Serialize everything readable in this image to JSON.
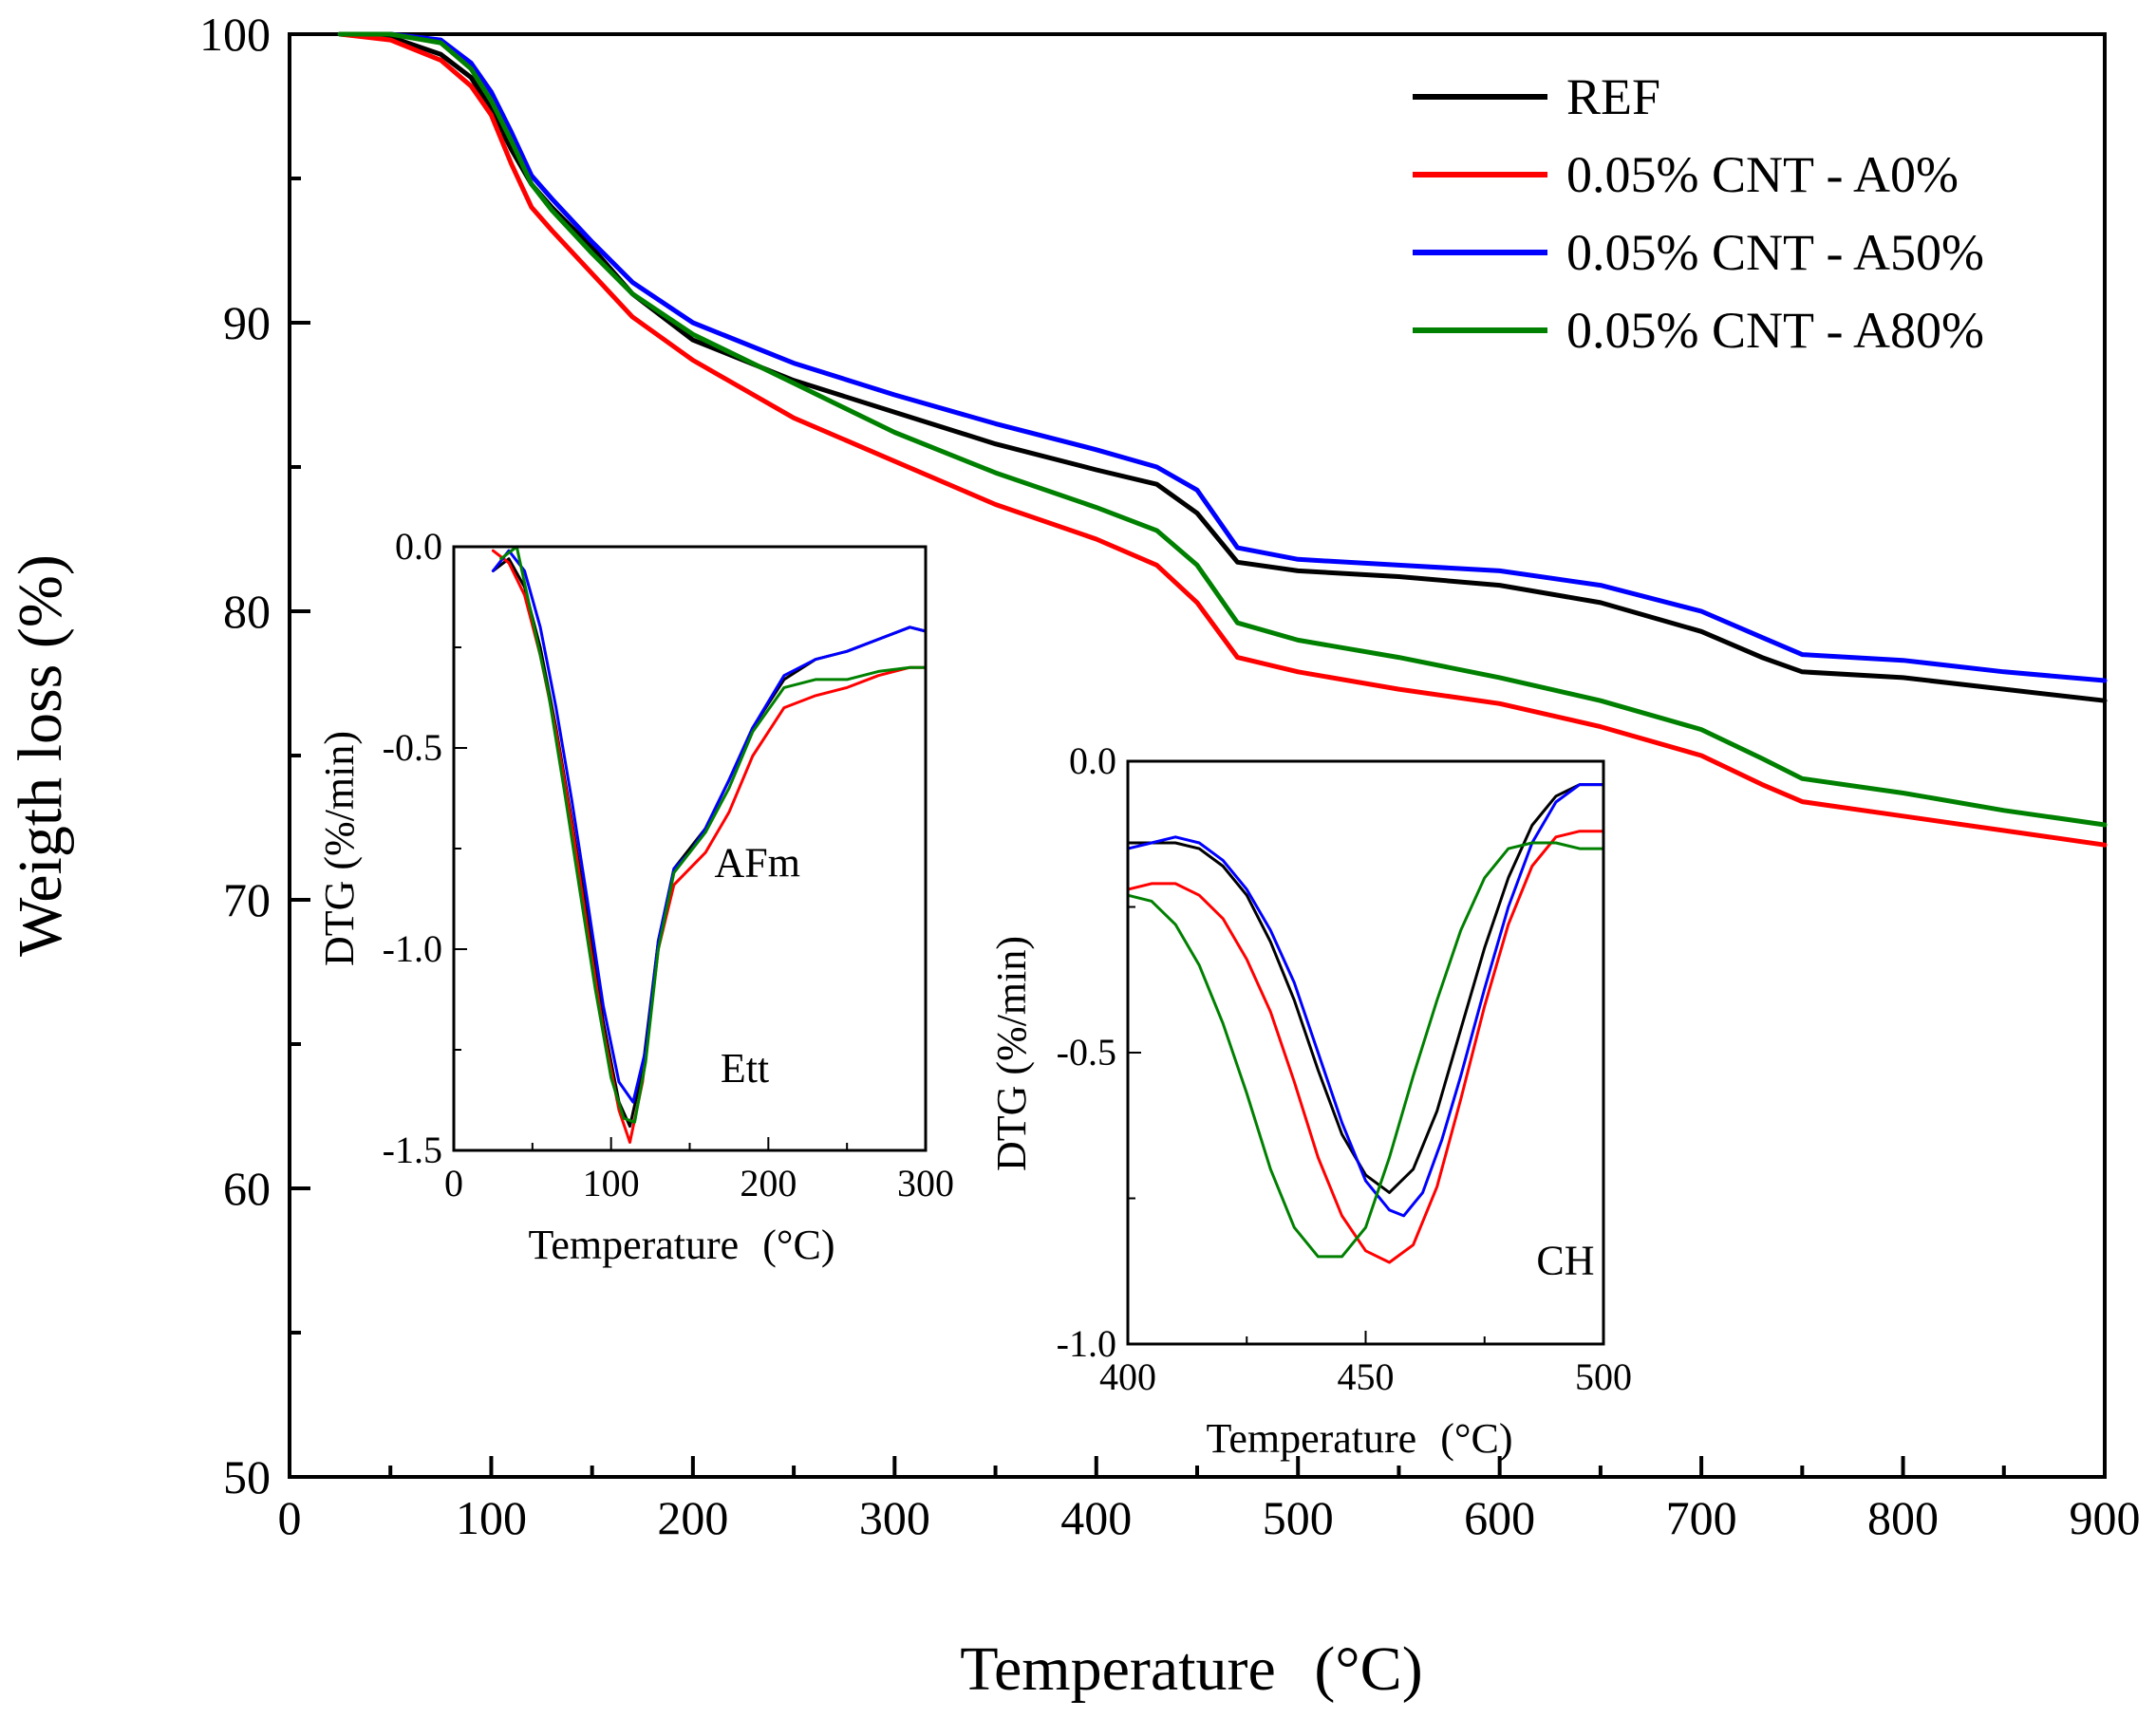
{
  "chart_data": [
    {
      "type": "line",
      "id": "main",
      "title": "",
      "xlabel": "Temperature (°C)",
      "xlabel_main": "Temperature",
      "xlabel_unit": "(°C)",
      "ylabel": "Weigth loss (%)",
      "xlim": [
        0,
        900
      ],
      "ylim": [
        50,
        100
      ],
      "xticks": [
        0,
        100,
        200,
        300,
        400,
        500,
        600,
        700,
        800,
        900
      ],
      "xtick_labels": [
        "0",
        "100",
        "200",
        "300",
        "400",
        "500",
        "600",
        "700",
        "800",
        "900"
      ],
      "yticks": [
        50,
        60,
        70,
        80,
        90,
        100
      ],
      "ytick_labels": [
        "50",
        "60",
        "70",
        "80",
        "90",
        "100"
      ],
      "legend_position": "top-right",
      "series": [
        {
          "name": "REF",
          "color": "#000000",
          "x": [
            25,
            50,
            75,
            90,
            100,
            110,
            120,
            130,
            150,
            170,
            200,
            250,
            300,
            350,
            400,
            430,
            450,
            470,
            500,
            550,
            600,
            650,
            700,
            730,
            750,
            800,
            850,
            900
          ],
          "y": [
            100,
            99.9,
            99.3,
            98.5,
            97.4,
            96,
            94.8,
            94.0,
            92.6,
            91.0,
            89.4,
            88.0,
            86.9,
            85.8,
            84.9,
            84.4,
            83.4,
            81.7,
            81.4,
            81.2,
            80.9,
            80.3,
            79.3,
            78.4,
            77.9,
            77.7,
            77.3,
            76.9
          ]
        },
        {
          "name": "0.05% CNT - A0%",
          "color": "#ff0000",
          "x": [
            25,
            50,
            75,
            90,
            100,
            110,
            120,
            130,
            150,
            170,
            200,
            250,
            300,
            350,
            400,
            430,
            450,
            470,
            500,
            550,
            600,
            650,
            700,
            730,
            750,
            800,
            850,
            900
          ],
          "y": [
            100,
            99.8,
            99.1,
            98.2,
            97.2,
            95.5,
            94.0,
            93.2,
            91.7,
            90.2,
            88.7,
            86.7,
            85.2,
            83.7,
            82.5,
            81.6,
            80.3,
            78.4,
            77.9,
            77.3,
            76.8,
            76.0,
            75.0,
            74.0,
            73.4,
            72.9,
            72.4,
            71.9
          ]
        },
        {
          "name": "0.05% CNT - A50%",
          "color": "#0000ff",
          "x": [
            25,
            50,
            75,
            90,
            100,
            110,
            120,
            130,
            150,
            170,
            200,
            250,
            300,
            350,
            400,
            430,
            450,
            470,
            500,
            550,
            600,
            650,
            700,
            730,
            750,
            800,
            850,
            900
          ],
          "y": [
            100,
            100,
            99.8,
            99.0,
            98.0,
            96.6,
            95.1,
            94.3,
            92.8,
            91.4,
            90.0,
            88.6,
            87.5,
            86.5,
            85.6,
            85.0,
            84.2,
            82.2,
            81.8,
            81.6,
            81.4,
            80.9,
            80.0,
            79.1,
            78.5,
            78.3,
            77.9,
            77.6
          ]
        },
        {
          "name": "0.05% CNT - A80%",
          "color": "#008000",
          "x": [
            25,
            50,
            75,
            90,
            100,
            110,
            120,
            130,
            150,
            170,
            200,
            250,
            300,
            350,
            400,
            430,
            450,
            470,
            500,
            550,
            600,
            650,
            700,
            730,
            750,
            800,
            850,
            900
          ],
          "y": [
            100,
            100,
            99.7,
            98.8,
            97.7,
            96.3,
            94.8,
            93.9,
            92.4,
            91.0,
            89.6,
            87.9,
            86.2,
            84.8,
            83.6,
            82.8,
            81.6,
            79.6,
            79.0,
            78.4,
            77.7,
            76.9,
            75.9,
            74.9,
            74.2,
            73.7,
            73.1,
            72.6
          ]
        }
      ]
    },
    {
      "type": "line",
      "id": "inset-left",
      "xlabel": "Temperature (°C)",
      "xlabel_main": "Temperature",
      "xlabel_unit": "(°C)",
      "ylabel": "DTG (%/min)",
      "xlim": [
        0,
        300
      ],
      "ylim": [
        -1.5,
        0.0
      ],
      "xticks": [
        0,
        100,
        200,
        300
      ],
      "xtick_labels": [
        "0",
        "100",
        "200",
        "300"
      ],
      "yticks": [
        -1.5,
        -1.0,
        -0.5,
        0.0
      ],
      "ytick_labels": [
        "-1.5",
        "-1.0",
        "-0.5",
        "0.0"
      ],
      "annotations": [
        {
          "text": "AFm",
          "x": 193,
          "y": -0.82
        },
        {
          "text": "Ett",
          "x": 185,
          "y": -1.33
        }
      ],
      "series": [
        {
          "name": "REF",
          "color": "#000000",
          "x": [
            25,
            35,
            45,
            55,
            65,
            75,
            85,
            95,
            105,
            112,
            120,
            130,
            140,
            150,
            160,
            175,
            190,
            210,
            230,
            250,
            270,
            290,
            300
          ],
          "y": [
            -0.06,
            -0.03,
            -0.1,
            -0.25,
            -0.45,
            -0.68,
            -0.92,
            -1.18,
            -1.38,
            -1.44,
            -1.3,
            -0.98,
            -0.8,
            -0.75,
            -0.7,
            -0.58,
            -0.45,
            -0.33,
            -0.28,
            -0.26,
            -0.23,
            -0.2,
            -0.21
          ]
        },
        {
          "name": "0.05% CNT - A0%",
          "color": "#ff0000",
          "x": [
            25,
            35,
            45,
            55,
            65,
            75,
            85,
            95,
            105,
            112,
            120,
            130,
            140,
            150,
            160,
            175,
            190,
            210,
            230,
            250,
            270,
            290,
            300
          ],
          "y": [
            -0.01,
            -0.04,
            -0.12,
            -0.27,
            -0.46,
            -0.69,
            -0.95,
            -1.2,
            -1.4,
            -1.48,
            -1.33,
            -1.0,
            -0.84,
            -0.8,
            -0.76,
            -0.66,
            -0.52,
            -0.4,
            -0.37,
            -0.35,
            -0.32,
            -0.3,
            -0.3
          ]
        },
        {
          "name": "0.05% CNT - A50%",
          "color": "#0000ff",
          "x": [
            25,
            35,
            45,
            55,
            65,
            75,
            85,
            95,
            105,
            114,
            122,
            130,
            140,
            150,
            160,
            175,
            190,
            210,
            230,
            250,
            270,
            290,
            300
          ],
          "y": [
            -0.06,
            -0.01,
            -0.06,
            -0.2,
            -0.4,
            -0.63,
            -0.88,
            -1.14,
            -1.33,
            -1.38,
            -1.25,
            -0.98,
            -0.8,
            -0.76,
            -0.7,
            -0.58,
            -0.45,
            -0.32,
            -0.28,
            -0.26,
            -0.23,
            -0.2,
            -0.21
          ]
        },
        {
          "name": "0.05% CNT - A80%",
          "color": "#008000",
          "x": [
            30,
            40,
            50,
            60,
            70,
            80,
            90,
            100,
            108,
            115,
            122,
            130,
            140,
            150,
            160,
            175,
            190,
            210,
            230,
            250,
            270,
            290,
            300
          ],
          "y": [
            -0.03,
            0.0,
            -0.18,
            -0.36,
            -0.6,
            -0.85,
            -1.1,
            -1.32,
            -1.42,
            -1.43,
            -1.28,
            -1.0,
            -0.81,
            -0.76,
            -0.71,
            -0.6,
            -0.46,
            -0.35,
            -0.33,
            -0.33,
            -0.31,
            -0.3,
            -0.3
          ]
        }
      ]
    },
    {
      "type": "line",
      "id": "inset-right",
      "xlabel": "Temperature (°C)",
      "xlabel_main": "Temperature",
      "xlabel_unit": "(°C)",
      "ylabel": "DTG (%/min)",
      "xlim": [
        400,
        500
      ],
      "ylim": [
        -1.0,
        0.0
      ],
      "xticks": [
        400,
        450,
        500
      ],
      "xtick_labels": [
        "400",
        "450",
        "500"
      ],
      "yticks": [
        -1.0,
        -0.5,
        0.0
      ],
      "ytick_labels": [
        "-1.0",
        "-0.5",
        "0.0"
      ],
      "annotations": [
        {
          "text": "CH",
          "x": 492,
          "y": -0.88
        }
      ],
      "series": [
        {
          "name": "REF",
          "color": "#000000",
          "x": [
            400,
            405,
            410,
            415,
            420,
            425,
            430,
            435,
            440,
            445,
            450,
            455,
            460,
            465,
            470,
            475,
            480,
            485,
            490,
            495,
            500
          ],
          "y": [
            -0.14,
            -0.14,
            -0.14,
            -0.15,
            -0.18,
            -0.23,
            -0.31,
            -0.41,
            -0.53,
            -0.64,
            -0.71,
            -0.74,
            -0.7,
            -0.6,
            -0.46,
            -0.32,
            -0.2,
            -0.11,
            -0.06,
            -0.04,
            -0.04
          ]
        },
        {
          "name": "0.05% CNT - A0%",
          "color": "#ff0000",
          "x": [
            400,
            405,
            410,
            415,
            420,
            425,
            430,
            435,
            440,
            445,
            450,
            455,
            460,
            465,
            470,
            475,
            480,
            485,
            490,
            495,
            500
          ],
          "y": [
            -0.22,
            -0.21,
            -0.21,
            -0.23,
            -0.27,
            -0.34,
            -0.43,
            -0.55,
            -0.68,
            -0.78,
            -0.84,
            -0.86,
            -0.83,
            -0.73,
            -0.58,
            -0.42,
            -0.28,
            -0.18,
            -0.13,
            -0.12,
            -0.12
          ]
        },
        {
          "name": "0.05% CNT - A50%",
          "color": "#0000ff",
          "x": [
            400,
            405,
            410,
            415,
            420,
            425,
            430,
            435,
            440,
            445,
            450,
            455,
            458,
            462,
            466,
            470,
            475,
            480,
            485,
            490,
            495,
            500
          ],
          "y": [
            -0.15,
            -0.14,
            -0.13,
            -0.14,
            -0.17,
            -0.22,
            -0.29,
            -0.38,
            -0.5,
            -0.62,
            -0.72,
            -0.77,
            -0.78,
            -0.74,
            -0.65,
            -0.54,
            -0.39,
            -0.25,
            -0.14,
            -0.07,
            -0.04,
            -0.04
          ]
        },
        {
          "name": "0.05% CNT - A80%",
          "color": "#008000",
          "x": [
            400,
            405,
            410,
            415,
            420,
            425,
            430,
            435,
            440,
            445,
            450,
            455,
            460,
            465,
            470,
            475,
            480,
            485,
            490,
            495,
            500
          ],
          "y": [
            -0.23,
            -0.24,
            -0.28,
            -0.35,
            -0.45,
            -0.57,
            -0.7,
            -0.8,
            -0.85,
            -0.85,
            -0.8,
            -0.68,
            -0.54,
            -0.41,
            -0.29,
            -0.2,
            -0.15,
            -0.14,
            -0.14,
            -0.15,
            -0.15
          ]
        }
      ]
    }
  ]
}
